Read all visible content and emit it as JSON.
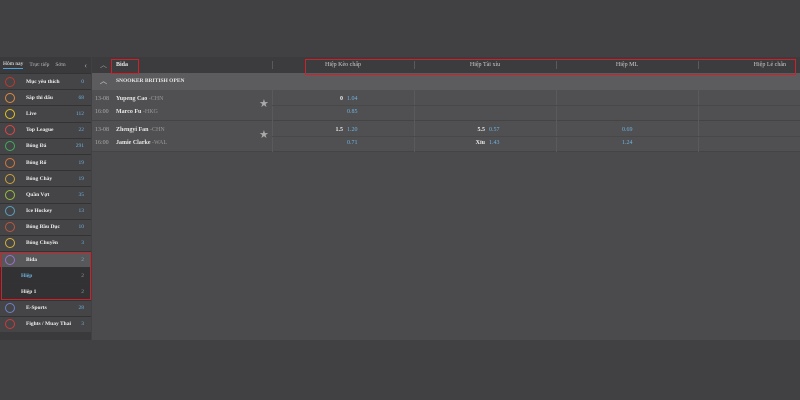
{
  "sidebar": {
    "tabs": [
      "Hôm nay",
      "Trực tiếp",
      "Sớm"
    ],
    "items": [
      {
        "label": "Mục yêu thích",
        "count": "0",
        "icon": "star-icon",
        "color": "#c0392b"
      },
      {
        "label": "Sắp thi đấu",
        "count": "68",
        "icon": "clock-icon",
        "color": "#e08a3c"
      },
      {
        "label": "Live",
        "count": "112",
        "icon": "tv-icon",
        "color": "#e6c41e"
      },
      {
        "label": "Top League",
        "count": "22",
        "icon": "top-league-icon",
        "color": "#e04545"
      },
      {
        "label": "Bóng Đá",
        "count": "291",
        "icon": "soccer-icon",
        "color": "#3fae5a"
      },
      {
        "label": "Bóng Rổ",
        "count": "19",
        "icon": "basketball-icon",
        "color": "#d9773a"
      },
      {
        "label": "Bóng Chày",
        "count": "19",
        "icon": "baseball-icon",
        "color": "#c9a23a"
      },
      {
        "label": "Quần Vợt",
        "count": "35",
        "icon": "tennis-icon",
        "color": "#9bbf3a"
      },
      {
        "label": "Ice Hockey",
        "count": "13",
        "icon": "hockey-icon",
        "color": "#5aa0c0"
      },
      {
        "label": "Bóng Bầu Dục",
        "count": "10",
        "icon": "rugby-icon",
        "color": "#c0553a"
      },
      {
        "label": "Bóng Chuyền",
        "count": "3",
        "icon": "volleyball-icon",
        "color": "#d9b23a"
      },
      {
        "label": "Bida",
        "count": "2",
        "icon": "billiards-icon",
        "color": "#9b6fd0"
      },
      {
        "label": "Hiệp",
        "count": "2"
      },
      {
        "label": "Hiệp 1",
        "count": "2"
      },
      {
        "label": "E-Sports",
        "count": "28",
        "icon": "gamepad-icon",
        "color": "#6f7fd0"
      },
      {
        "label": "Fights / Muay Thai",
        "count": "3",
        "icon": "boxing-icon",
        "color": "#d03a3a"
      }
    ]
  },
  "main": {
    "sport": "Bida",
    "columns": [
      "Hiệp Kèo chấp",
      "Hiệp Tài xỉu",
      "Hiệp ML",
      "Hiệp Lẻ chẵn"
    ],
    "league": "SNOOKER BRITISH OPEN",
    "matches": [
      {
        "date": "13-08",
        "time": "16:00",
        "home": "Yupeng Cao",
        "home_c": "-CHN",
        "away": "Marco Fu",
        "away_c": "-HKG",
        "hcp_line": "0",
        "hcp_home": "1.04",
        "hcp_away": "0.85",
        "ou_line": "",
        "ou_over": "",
        "ou_label": "",
        "ou_under": "",
        "ml_home": "",
        "ml_away": ""
      },
      {
        "date": "13-08",
        "time": "16:00",
        "home": "Zhengyi Fan",
        "home_c": "-CHN",
        "away": "Jamie Clarke",
        "away_c": "-WAL",
        "hcp_line": "1.5",
        "hcp_home": "1.20",
        "hcp_away": "0.71",
        "ou_line": "5.5",
        "ou_over": "0.57",
        "ou_label": "Xỉu",
        "ou_under": "1.43",
        "ml_home": "0.69",
        "ml_away": "1.24"
      }
    ]
  },
  "colors": {
    "accent": "#6fb3e0",
    "highlight": "#d0202a"
  }
}
